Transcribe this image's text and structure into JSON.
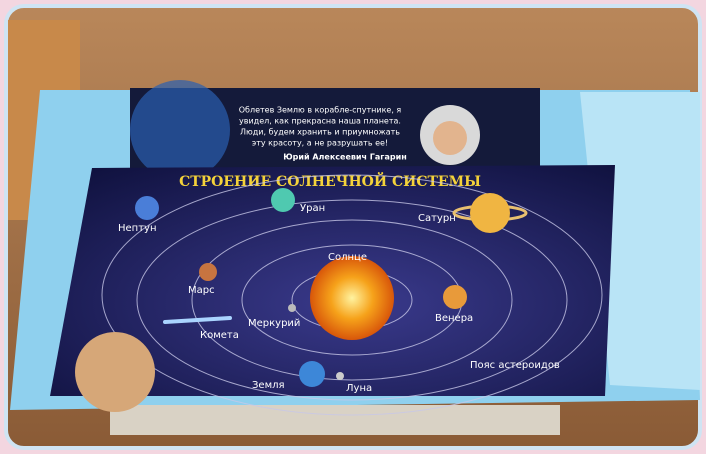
{
  "quote": {
    "lines": [
      "Облетев Землю в корабле-спутнике, я",
      "увидел, как прекрасна наша планета.",
      "Люди, будем хранить и приумножать",
      "эту красоту, а не разрушать ее!"
    ],
    "author": "Юрий Алексеевич Гагарин"
  },
  "poster": {
    "title": "СТРОЕНИЕ СОЛНЕЧНОЙ СИСТЕМЫ",
    "labels": {
      "neptune": "Нептун",
      "uranus": "Уран",
      "saturn": "Сатурн",
      "sun": "Солнце",
      "mars": "Марс",
      "comet": "Комета",
      "mercury": "Меркурий",
      "venus": "Венера",
      "asteroids": "Пояс астероидов",
      "earth": "Земля",
      "moon": "Луна"
    }
  }
}
